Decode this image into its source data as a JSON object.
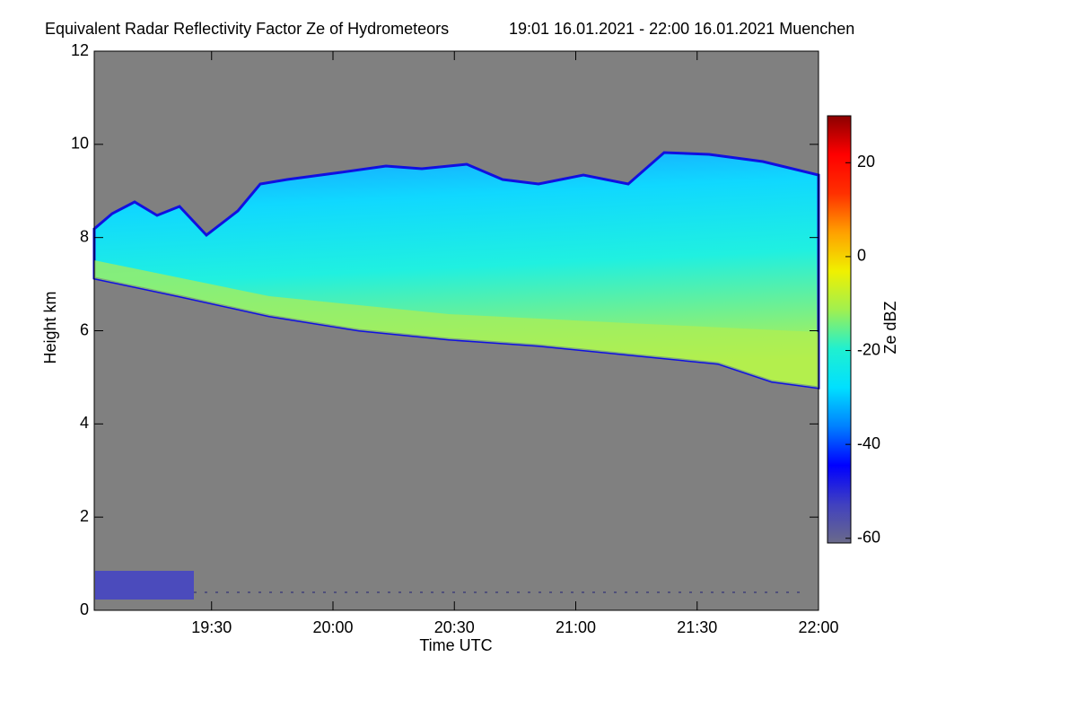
{
  "chart_data": {
    "type": "heatmap",
    "title": "Equivalent Radar Reflectivity Factor Ze of Hydrometeors",
    "subtitle": "19:01 16.01.2021 - 22:00 16.01.2021 Muenchen",
    "x_label": "Time UTC",
    "y_label": "Height km",
    "xlim": [
      1141,
      1320
    ],
    "xticks": [
      {
        "value": 1170,
        "label": "19:30"
      },
      {
        "value": 1200,
        "label": "20:00"
      },
      {
        "value": 1230,
        "label": "20:30"
      },
      {
        "value": 1260,
        "label": "21:00"
      },
      {
        "value": 1290,
        "label": "21:30"
      },
      {
        "value": 1320,
        "label": "22:00"
      }
    ],
    "ylim": [
      0,
      12
    ],
    "yticks": [
      0,
      2,
      4,
      6,
      8,
      10,
      12
    ],
    "background": "#808080",
    "colorbar": {
      "label": "Ze dBZ",
      "lim": [
        -61,
        30
      ],
      "ticks": [
        -60,
        -40,
        -20,
        0,
        20
      ],
      "colors": [
        "#6a6a8a",
        "#4040c0",
        "#0000ff",
        "#0080ff",
        "#00e0ff",
        "#20f0d0",
        "#a0f050",
        "#f0f000",
        "#ffa000",
        "#ff3000",
        "#ff0000",
        "#8b0000"
      ]
    }
  }
}
